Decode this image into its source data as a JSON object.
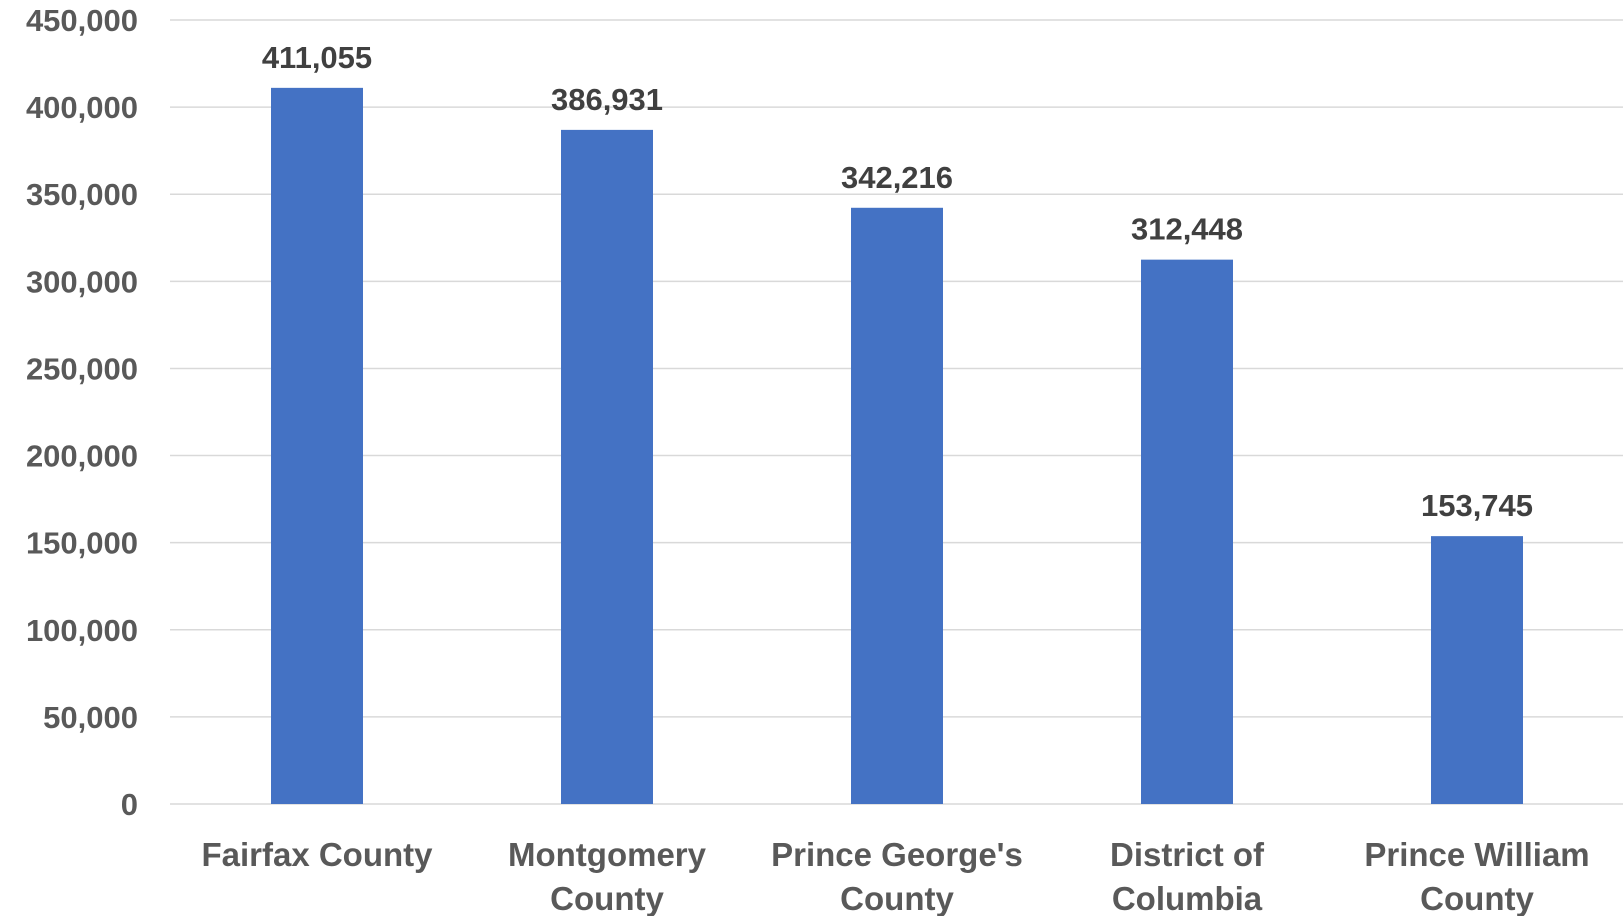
{
  "chart_data": {
    "type": "bar",
    "title": "",
    "xlabel": "",
    "ylabel": "",
    "categories": [
      [
        "Fairfax County"
      ],
      [
        "Montgomery",
        "County"
      ],
      [
        "Prince George's",
        "County"
      ],
      [
        "District of",
        "Columbia"
      ],
      [
        "Prince William",
        "County"
      ]
    ],
    "values": [
      411055,
      386931,
      342216,
      312448,
      153745
    ],
    "value_labels": [
      "411,055",
      "386,931",
      "342,216",
      "312,448",
      "153,745"
    ],
    "ylim": [
      0,
      450000
    ],
    "yticks": [
      0,
      50000,
      100000,
      150000,
      200000,
      250000,
      300000,
      350000,
      400000,
      450000
    ],
    "ytick_labels": [
      "0",
      "50,000",
      "100,000",
      "150,000",
      "200,000",
      "250,000",
      "300,000",
      "350,000",
      "400,000",
      "450,000"
    ],
    "grid": true,
    "legend": "none",
    "colors": {
      "bar": "#4472C4",
      "gridline": "#D9D9D9",
      "text": "#595959",
      "value_label": "#404040"
    }
  }
}
